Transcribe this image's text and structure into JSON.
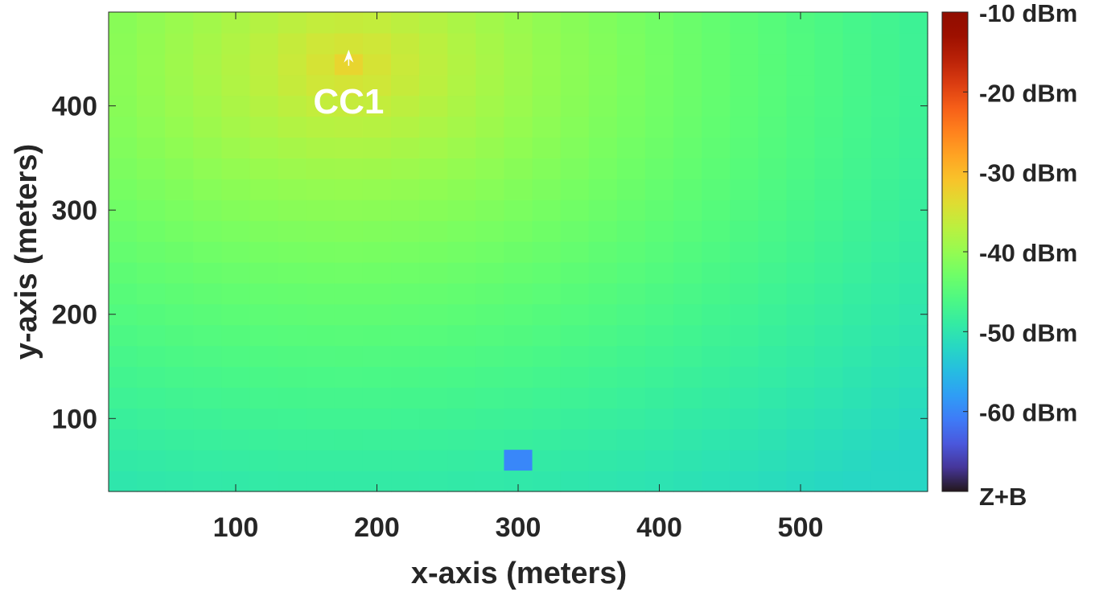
{
  "chart_data": {
    "type": "heatmap",
    "xlabel": "x-axis (meters)",
    "ylabel": "y-axis (meters)",
    "xlim": [
      10,
      590
    ],
    "ylim": [
      30,
      490
    ],
    "xticks": [
      100,
      200,
      300,
      400,
      500
    ],
    "yticks": [
      100,
      200,
      300,
      400
    ],
    "grid": false,
    "colormap": "turbo",
    "color_range_dbm": [
      -70,
      -10
    ],
    "colorbar": {
      "ticks": [
        -10,
        -20,
        -30,
        -40,
        -50,
        -60
      ],
      "tick_labels": [
        "-10 dBm",
        "-20 dBm",
        "-30 dBm",
        "-40 dBm",
        "-50 dBm",
        "-60 dBm"
      ],
      "bottom_label": "Z+B"
    },
    "cell_size_m": [
      20,
      20
    ],
    "field_model": {
      "peak_xy": [
        180,
        440
      ],
      "peak_dbm": -33,
      "far_edge_dbm": -52
    },
    "anomaly_cells": [
      {
        "x": 300,
        "y": 60,
        "value_dbm": -60
      }
    ],
    "annotations": [
      {
        "text": "CC1",
        "x": 180,
        "y": 440,
        "marker": "arrow"
      }
    ]
  }
}
